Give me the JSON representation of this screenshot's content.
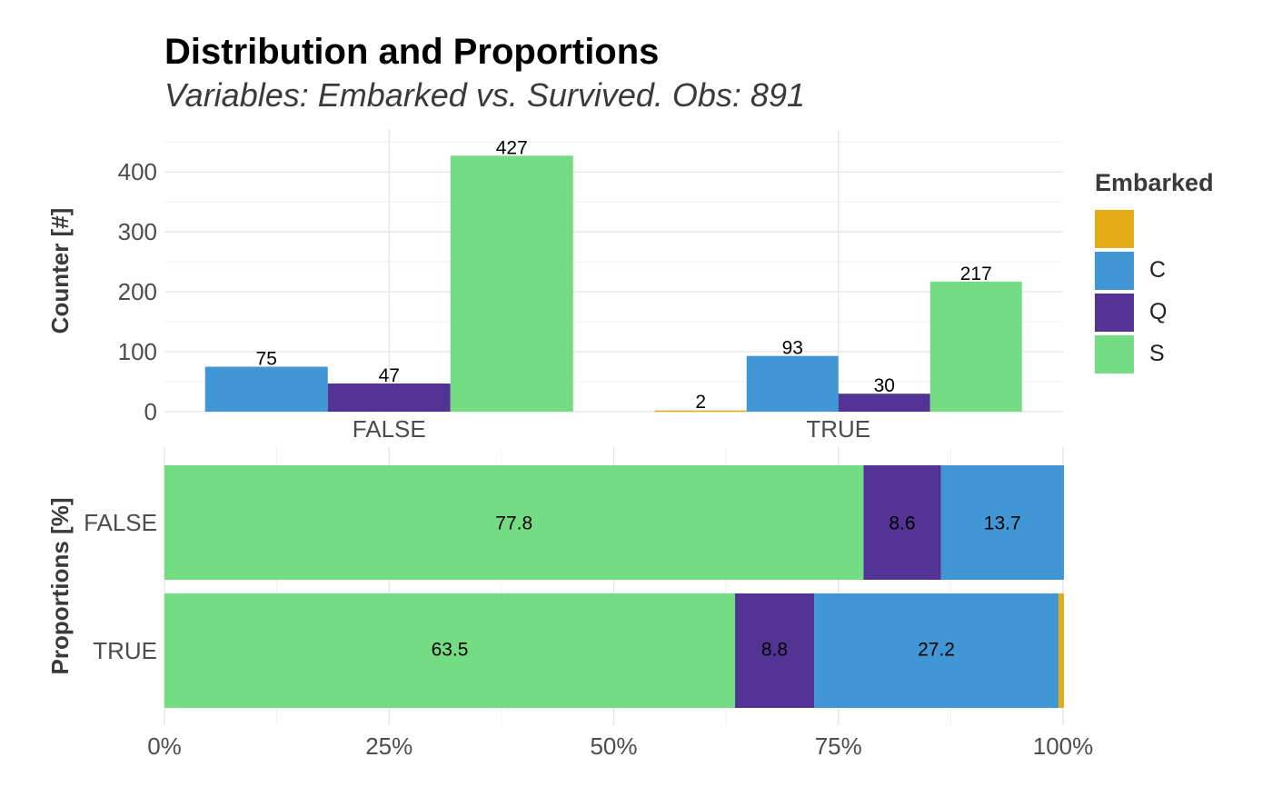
{
  "title": "Distribution and Proportions",
  "subtitle": "Variables: Embarked vs. Survived. Obs: 891",
  "legend": {
    "title": "Embarked",
    "items": [
      {
        "label": "",
        "color": "#E6AC17"
      },
      {
        "label": "C",
        "color": "#4197D4"
      },
      {
        "label": "Q",
        "color": "#533393"
      },
      {
        "label": "S",
        "color": "#74DD83"
      }
    ]
  },
  "chart_data": [
    {
      "type": "bar",
      "ylabel": "Counter [#]",
      "xlabel": "",
      "categories": [
        "FALSE",
        "TRUE"
      ],
      "ylim": [
        0,
        470
      ],
      "yticks": [
        "0",
        "100",
        "200",
        "300",
        "400"
      ],
      "series": [
        {
          "name": "",
          "values": [
            null,
            2
          ]
        },
        {
          "name": "C",
          "values": [
            75,
            93
          ]
        },
        {
          "name": "Q",
          "values": [
            47,
            30
          ]
        },
        {
          "name": "S",
          "values": [
            427,
            217
          ]
        }
      ],
      "grid": true
    },
    {
      "type": "bar",
      "orientation": "horizontal-stacked",
      "ylabel": "Proportions [%]",
      "categories": [
        "FALSE",
        "TRUE"
      ],
      "xticks": [
        "0%",
        "25%",
        "50%",
        "75%",
        "100%"
      ],
      "stack_order": [
        "S",
        "Q",
        "C",
        ""
      ],
      "rows": [
        {
          "category": "FALSE",
          "segments": [
            {
              "series": "S",
              "value": 77.8,
              "label": "77.8"
            },
            {
              "series": "Q",
              "value": 8.6,
              "label": "8.6"
            },
            {
              "series": "C",
              "value": 13.7,
              "label": "13.7"
            }
          ]
        },
        {
          "category": "TRUE",
          "segments": [
            {
              "series": "S",
              "value": 63.5,
              "label": "63.5"
            },
            {
              "series": "Q",
              "value": 8.8,
              "label": "8.8"
            },
            {
              "series": "C",
              "value": 27.2,
              "label": "27.2"
            },
            {
              "series": "",
              "value": 0.6,
              "label": ""
            }
          ]
        }
      ],
      "grid": true
    }
  ]
}
